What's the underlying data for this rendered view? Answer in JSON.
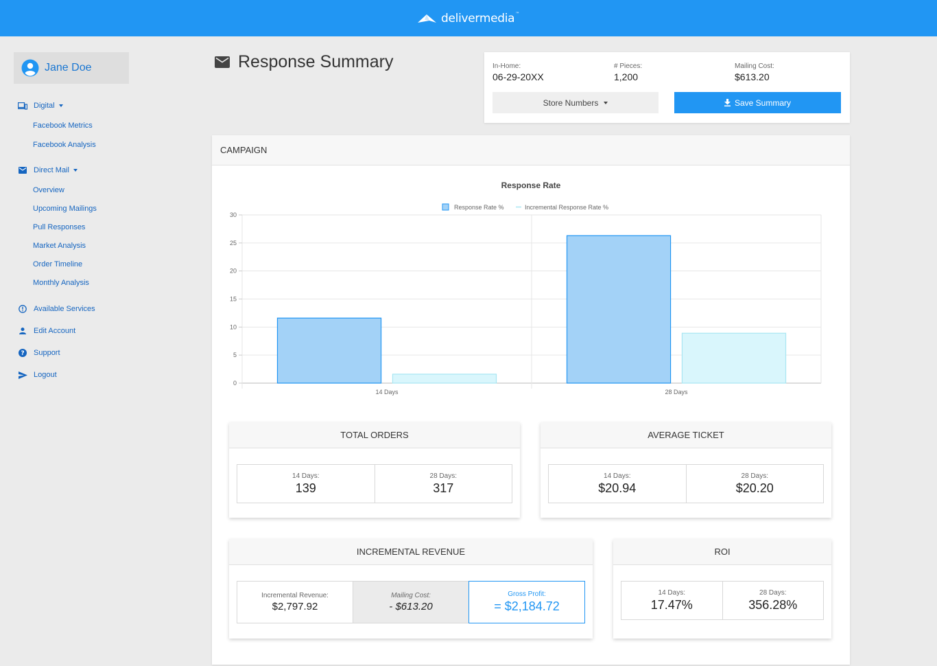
{
  "brand": {
    "name": "delivermedia",
    "tm": "™"
  },
  "user": {
    "name": "Jane Doe"
  },
  "sidebar": {
    "digital": {
      "label": "Digital",
      "items": [
        "Facebook Metrics",
        "Facebook Analysis"
      ]
    },
    "direct_mail": {
      "label": "Direct Mail",
      "items": [
        "Overview",
        "Upcoming Mailings",
        "Pull Responses",
        "Market Analysis",
        "Order Timeline",
        "Monthly Analysis"
      ]
    },
    "available_services": "Available Services",
    "edit_account": "Edit Account",
    "support": "Support",
    "logout": "Logout"
  },
  "header": {
    "title": "Response Summary"
  },
  "info": {
    "in_home_label": "In-Home:",
    "in_home_value": "06-29-20XX",
    "pieces_label": "# Pieces:",
    "pieces_value": "1,200",
    "cost_label": "Mailing Cost:",
    "cost_value": "$613.20",
    "store_numbers": "Store Numbers",
    "save_summary": "Save Summary"
  },
  "campaign": {
    "title": "CAMPAIGN"
  },
  "chart_data": {
    "type": "bar",
    "title": "Response Rate",
    "categories": [
      "14 Days",
      "28 Days"
    ],
    "series": [
      {
        "name": "Response Rate %",
        "values": [
          11.6,
          26.3
        ],
        "fill": "#a3d2f7",
        "stroke": "#2196f3"
      },
      {
        "name": "Incremental Response Rate %",
        "values": [
          1.6,
          8.9
        ],
        "fill": "#d9f6fc",
        "stroke": "#a8e6f2"
      }
    ],
    "ylim": [
      0,
      30
    ],
    "yticks": [
      "0",
      "5",
      "10",
      "15",
      "20",
      "25",
      "30"
    ],
    "legend": "top",
    "grid": true
  },
  "total_orders": {
    "title": "TOTAL ORDERS",
    "d14_label": "14 Days:",
    "d14_value": "139",
    "d28_label": "28 Days:",
    "d28_value": "317"
  },
  "average_ticket": {
    "title": "AVERAGE TICKET",
    "d14_label": "14 Days:",
    "d14_value": "$20.94",
    "d28_label": "28 Days:",
    "d28_value": "$20.20"
  },
  "incremental_revenue": {
    "title": "INCREMENTAL REVENUE",
    "rev_label": "Incremental Revenue:",
    "rev_value": "$2,797.92",
    "cost_label": "Mailing Cost:",
    "cost_value": "- $613.20",
    "profit_label": "Gross Profit:",
    "profit_value": "= $2,184.72"
  },
  "roi": {
    "title": "ROI",
    "d14_label": "14 Days:",
    "d14_value": "17.47%",
    "d28_label": "28 Days:",
    "d28_value": "356.28%"
  },
  "colors": {
    "primary": "#2196f3",
    "link": "#1565c0"
  }
}
